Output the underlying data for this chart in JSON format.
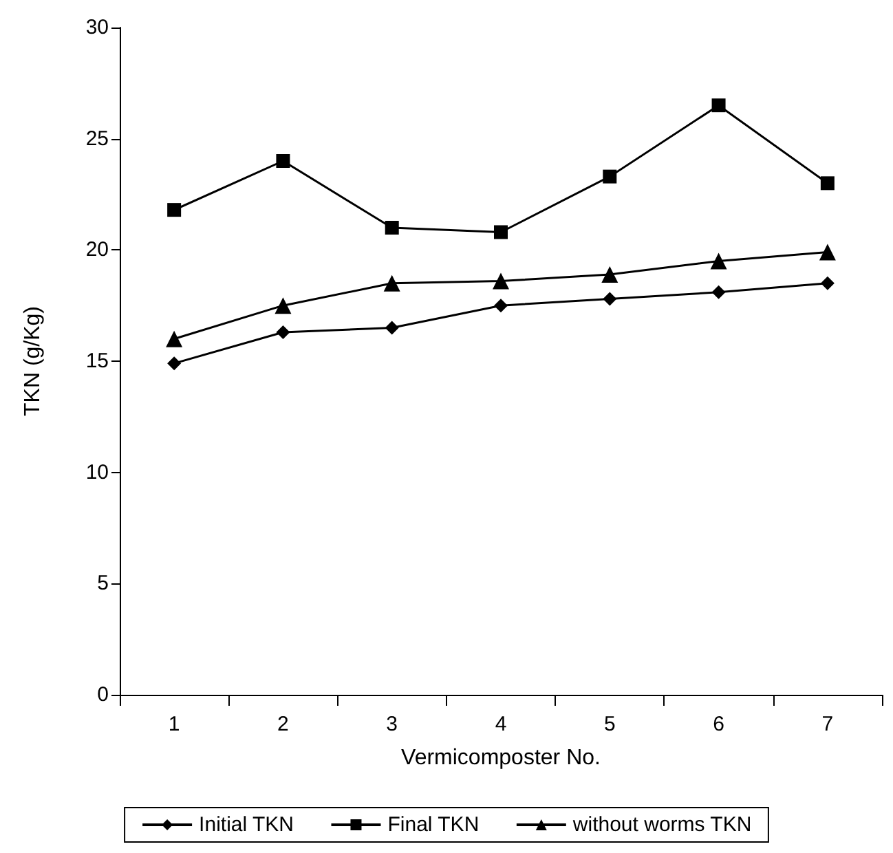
{
  "chart_data": {
    "type": "line",
    "xlabel": "Vermicomposter No.",
    "ylabel": "TKN (g/Kg)",
    "categories": [
      "1",
      "2",
      "3",
      "4",
      "5",
      "6",
      "7"
    ],
    "series": [
      {
        "name": "Initial TKN",
        "color": "#000000",
        "marker": "diamond",
        "values": [
          14.9,
          16.3,
          16.5,
          17.5,
          17.8,
          18.1,
          18.5
        ]
      },
      {
        "name": "Final TKN",
        "color": "#000000",
        "marker": "square",
        "values": [
          21.8,
          24.0,
          21.0,
          20.8,
          23.3,
          26.5,
          23.0
        ]
      },
      {
        "name": "without worms TKN",
        "color": "#000000",
        "marker": "triangle",
        "values": [
          16.0,
          17.5,
          18.5,
          18.6,
          18.9,
          19.5,
          19.9
        ]
      }
    ],
    "ylim": [
      0,
      30
    ],
    "yticks": [
      0,
      5,
      10,
      15,
      20,
      25,
      30
    ],
    "grid": false,
    "legend": "bottom",
    "line_style": "solid"
  }
}
